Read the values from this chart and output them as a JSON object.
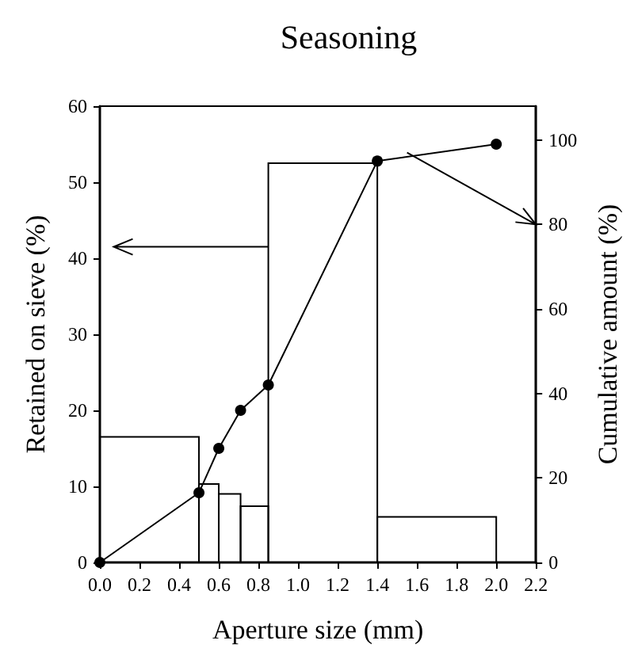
{
  "chart_data": {
    "type": "histogram",
    "title": "Seasoning",
    "xlabel": "Aperture size (mm)",
    "ylabel": "Retained on sieve (%)",
    "y2label": "Cumulative amount (%)",
    "bins": [
      0,
      0.5,
      0.6,
      0.71,
      0.85,
      1.4,
      2.0
    ],
    "values": [
      16.5,
      10.3,
      9,
      7.4,
      52.5,
      6
    ],
    "color": "#000000",
    "series": [
      {
        "type": "line",
        "axis": "y2",
        "color": "#000000",
        "x": [
          0,
          0.5,
          0.6,
          0.71,
          0.85,
          1.4,
          2.0
        ],
        "values": [
          0,
          16.5,
          27,
          36,
          42,
          95,
          99
        ]
      }
    ],
    "xlim": [
      0,
      2.2
    ],
    "xticks": [
      {
        "value": 0,
        "label": "0.0"
      },
      {
        "value": 0.2,
        "label": "0.2"
      },
      {
        "value": 0.4,
        "label": "0.4"
      },
      {
        "value": 0.6,
        "label": "0.6"
      },
      {
        "value": 0.8,
        "label": "0.8"
      },
      {
        "value": 1,
        "label": "1.0"
      },
      {
        "value": 1.2,
        "label": "1.2"
      },
      {
        "value": 1.4,
        "label": "1.4"
      },
      {
        "value": 1.6,
        "label": "1.6"
      },
      {
        "value": 1.8,
        "label": "1.8"
      },
      {
        "value": 2,
        "label": "2.0"
      },
      {
        "value": 2.2,
        "label": "2.2"
      }
    ],
    "ylim": [
      0,
      60
    ],
    "yticks": [
      0,
      10,
      20,
      30,
      40,
      50,
      60
    ],
    "y2lim": [
      0,
      108
    ],
    "y2ticks": [
      0,
      20,
      40,
      60,
      80,
      100
    ],
    "marker": "circle",
    "line_style": "solid"
  }
}
